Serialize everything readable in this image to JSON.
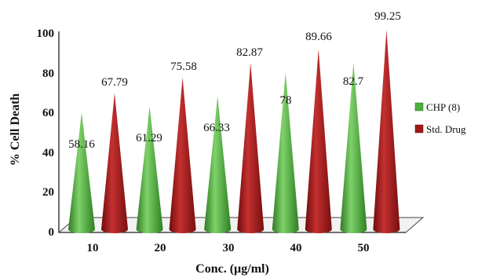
{
  "chart_data": {
    "type": "bar",
    "categories": [
      "10",
      "20",
      "30",
      "40",
      "50"
    ],
    "series": [
      {
        "name": "CHP (8)",
        "values": [
          58.16,
          61.29,
          66.33,
          78,
          82.7
        ],
        "color": "#4caf3c"
      },
      {
        "name": "Std. Drug",
        "values": [
          67.79,
          75.58,
          82.87,
          89.66,
          99.25
        ],
        "color": "#a01a1a"
      }
    ],
    "data_labels": [
      [
        "58.16",
        "61.29",
        "66.33",
        "78",
        "82.7"
      ],
      [
        "67.79",
        "75.58",
        "82.87",
        "89.66",
        "99.25"
      ]
    ],
    "xlabel": "Conc. (µg/ml)",
    "ylabel": "% Cell Death",
    "ylim": [
      0,
      100
    ],
    "yticks": [
      "0",
      "20",
      "40",
      "60",
      "80",
      "100"
    ],
    "shape": "cone",
    "legend_position": "right",
    "grid": false
  }
}
